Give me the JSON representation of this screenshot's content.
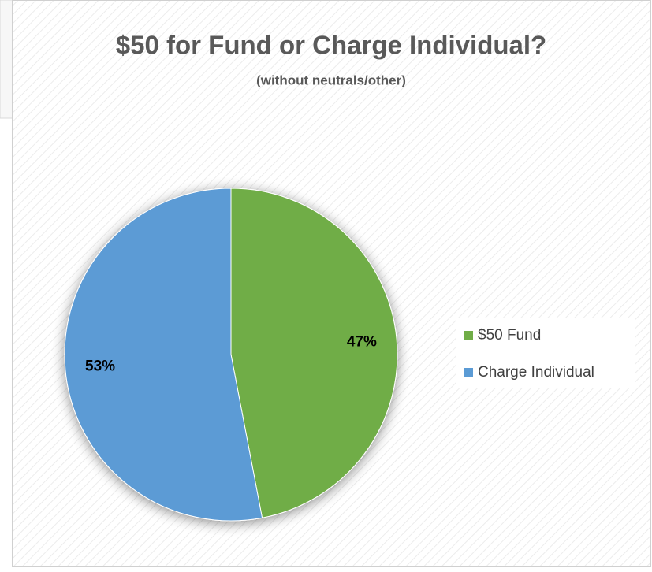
{
  "chart_data": {
    "type": "pie",
    "title": "$50 for Fund or Charge Individual?",
    "subtitle": "(without neutrals/other)",
    "categories": [
      "$50 Fund",
      "Charge Individual"
    ],
    "values": [
      47,
      53
    ],
    "value_labels": [
      "47%",
      "53%"
    ],
    "colors": [
      "#70ad47",
      "#5b9bd5"
    ],
    "legend": "right"
  }
}
